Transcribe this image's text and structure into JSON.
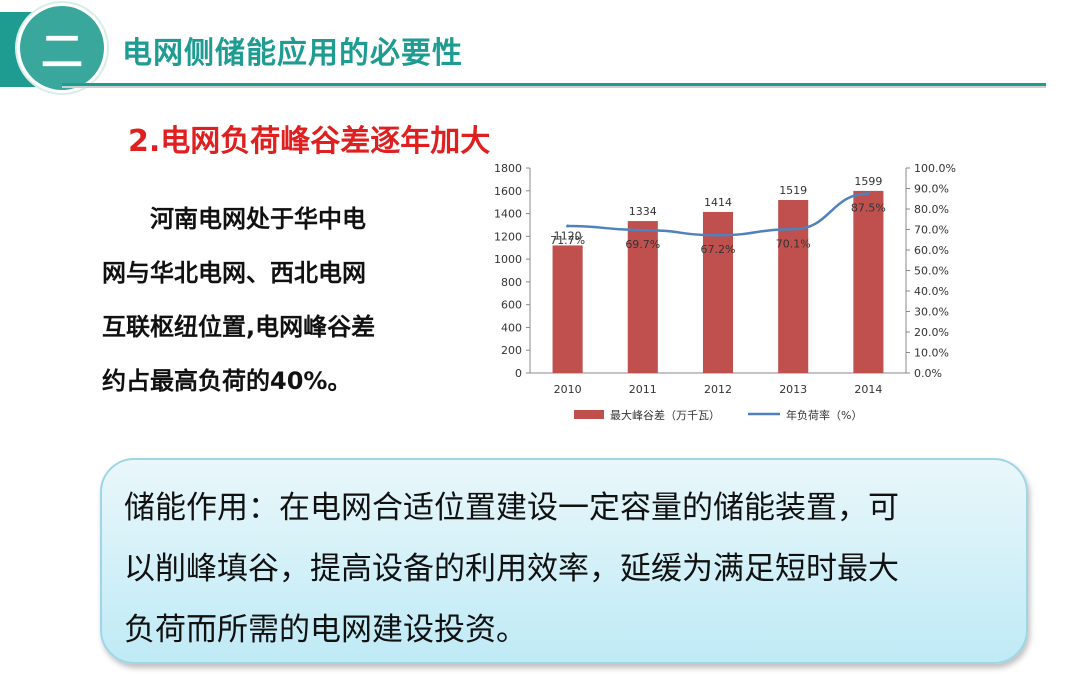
{
  "header": {
    "section_number": "二",
    "title": "电网侧储能应用的必要性",
    "accent_color": "#1f9c91"
  },
  "subtitle": "2.电网负荷峰谷差逐年加大",
  "description_lines": [
    "河南电网处于华中电",
    "网与华北电网、西北电网",
    "互联枢纽位置,电网峰谷差",
    "约占最高负荷的40%。"
  ],
  "note_lines": [
    "储能作用：在电网合适位置建设一定容量的储能装置，可",
    "以削峰填谷，提高设备的利用效率，延缓为满足短时最大",
    "负荷而所需的电网建设投资。"
  ],
  "chart_data": {
    "type": "bar",
    "categories": [
      "2010",
      "2011",
      "2012",
      "2013",
      "2014"
    ],
    "series": [
      {
        "name": "最大峰谷差（万千瓦）",
        "type": "bar",
        "axis": "left",
        "color": "#c0504d",
        "values": [
          1120,
          1334,
          1414,
          1519,
          1599
        ],
        "labels": [
          "1120",
          "1334",
          "1414",
          "1519",
          "1599"
        ]
      },
      {
        "name": "年负荷率（%）",
        "type": "line",
        "axis": "right",
        "color": "#4f81bd",
        "values": [
          71.7,
          69.7,
          67.2,
          70.1,
          87.5
        ],
        "labels": [
          "71.7%",
          "69.7%",
          "67.2%",
          "70.1%",
          "87.5%"
        ]
      }
    ],
    "y_left": {
      "range": [
        0,
        1800
      ],
      "ticks": [
        "0",
        "200",
        "400",
        "600",
        "800",
        "1000",
        "1200",
        "1400",
        "1600",
        "1800"
      ]
    },
    "y_right": {
      "range": [
        0,
        100
      ],
      "ticks": [
        "0.0%",
        "10.0%",
        "20.0%",
        "30.0%",
        "40.0%",
        "50.0%",
        "60.0%",
        "70.0%",
        "80.0%",
        "90.0%",
        "100.0%"
      ]
    },
    "grid": false,
    "legend_position": "bottom"
  }
}
